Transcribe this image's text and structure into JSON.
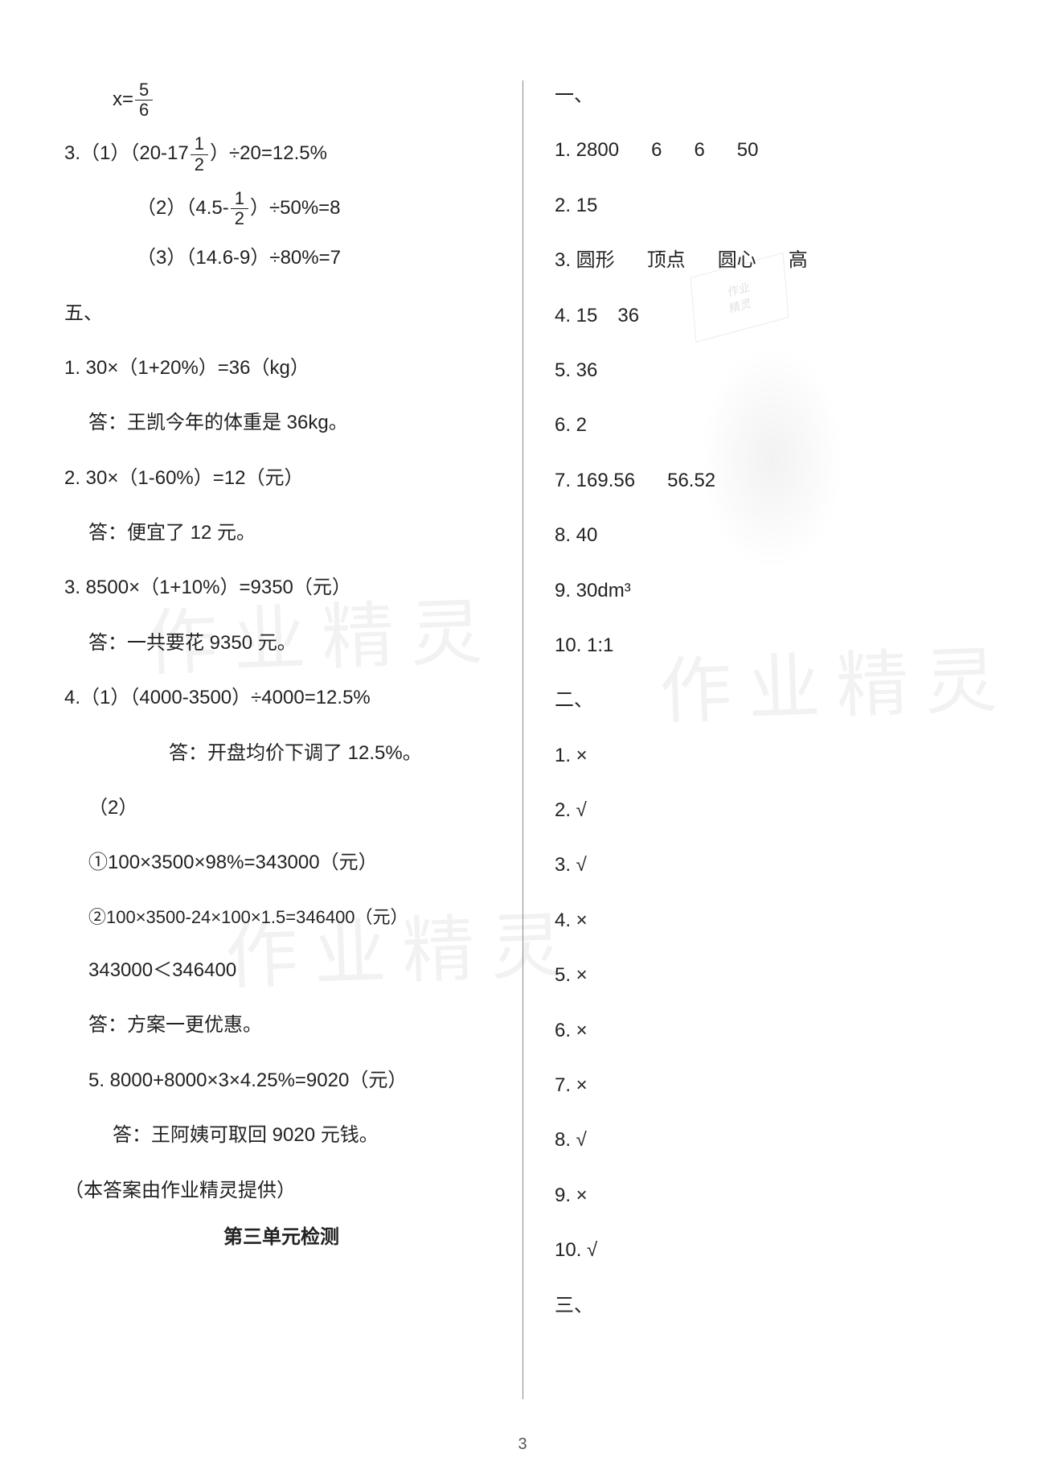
{
  "page_number": "3",
  "watermark_text": "作业精灵",
  "stamp_text1": "作业",
  "stamp_text2": "精灵",
  "left": {
    "eq_x_fraction_num": "5",
    "eq_x_fraction_den": "6",
    "eq_x_prefix": "x=",
    "q3_1_a": "3.（1）（20-17",
    "q3_1_num": "1",
    "q3_1_den": "2",
    "q3_1_b": "）÷20=12.5%",
    "q3_2_a": "（2）（4.5-",
    "q3_2_num": "1",
    "q3_2_den": "2",
    "q3_2_b": "）÷50%=8",
    "q3_3": "（3）（14.6-9）÷80%=7",
    "section5": "五、",
    "q5_1": "1. 30×（1+20%）=36（kg）",
    "q5_1_ans": "答：王凯今年的体重是 36kg。",
    "q5_2": "2. 30×（1-60%）=12（元）",
    "q5_2_ans": "答：便宜了 12 元。",
    "q5_3": "3. 8500×（1+10%）=9350（元）",
    "q5_3_ans": "答：一共要花 9350 元。",
    "q5_4_1": "4.（1）（4000-3500）÷4000=12.5%",
    "q5_4_1_ans": "答：开盘均价下调了 12.5%。",
    "q5_4_2": "（2）",
    "q5_4_2a": "①100×3500×98%=343000（元）",
    "q5_4_2b": "②100×3500-24×100×1.5=346400（元）",
    "q5_4_2c": "343000＜346400",
    "q5_4_2_ans": "答：方案一更优惠。",
    "q5_5": "5. 8000+8000×3×4.25%=9020（元）",
    "q5_5_ans": "答：王阿姨可取回 9020 元钱。",
    "credit": "（本答案由作业精灵提供）",
    "unit_title": "第三单元检测"
  },
  "right": {
    "s1": "一、",
    "r1_1_a": "1. 2800",
    "r1_1_b": "6",
    "r1_1_c": "6",
    "r1_1_d": "50",
    "r1_2": "2. 15",
    "r1_3_a": "3. 圆形",
    "r1_3_b": "顶点",
    "r1_3_c": "圆心",
    "r1_3_d": "高",
    "r1_4_a": "4. 15",
    "r1_4_b": "36",
    "r1_5": "5. 36",
    "r1_6": "6. 2",
    "r1_7_a": "7. 169.56",
    "r1_7_b": "56.52",
    "r1_8": "8. 40",
    "r1_9": "9. 30dm³",
    "r1_10": "10. 1:1",
    "s2": "二、",
    "r2_1": "1. ×",
    "r2_2": "2. √",
    "r2_3": "3. √",
    "r2_4": "4. ×",
    "r2_5": "5. ×",
    "r2_6": "6. ×",
    "r2_7": "7. ×",
    "r2_8": "8. √",
    "r2_9": "9. ×",
    "r2_10": "10. √",
    "s3": "三、"
  }
}
